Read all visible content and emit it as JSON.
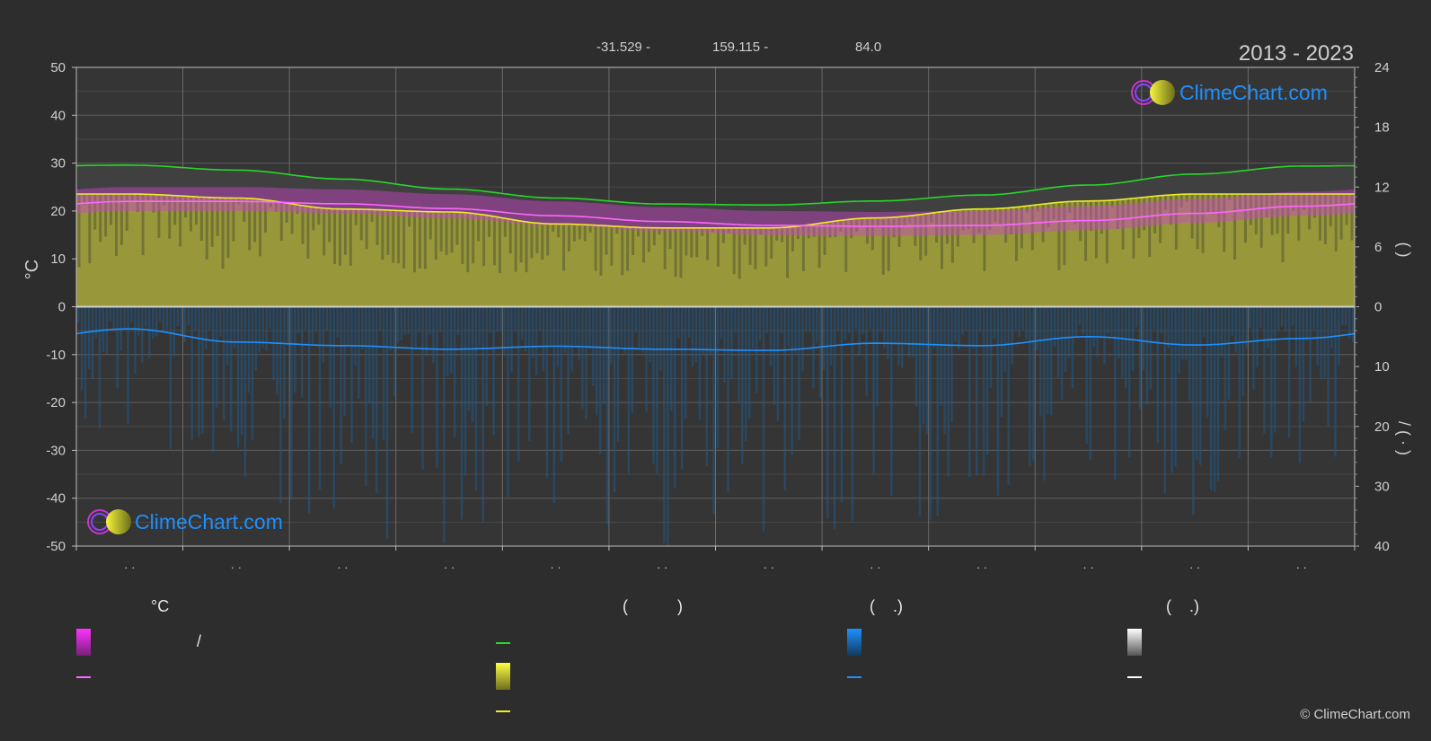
{
  "header": {
    "latitude": "-31.529 -",
    "longitude": "159.115 -",
    "elevation": "84.0",
    "period": "2013 - 2023"
  },
  "brand": {
    "logo_text": "ClimeChart.com",
    "copyright": "© ClimeChart.com"
  },
  "colors": {
    "background": "#2d2d2d",
    "grid": "#5a5a5a",
    "daylight": "#29d629",
    "sunshine_fill": "#a8a83a",
    "sunshine_line": "#ecec2a",
    "temp_band": "#cc44cc",
    "temp_line": "#ff66ff",
    "precip_fill": "#1d5a8a",
    "precip_line": "#1e90ff",
    "snow": "#ffffff"
  },
  "axes": {
    "left_unit": "°C",
    "right_upper_label": "(   )",
    "right_lower_label": "/   (  ·  )"
  },
  "chart_data": {
    "type": "area",
    "x": [
      "· ·",
      "· ·",
      "· ·",
      "· ·",
      "· ·",
      "· ·",
      "· ·",
      "· ·",
      "· ·",
      "· ·",
      "· ·",
      "· ·"
    ],
    "left_ylim": [
      -50,
      50
    ],
    "left_ticks": [
      "50",
      "40",
      "30",
      "20",
      "10",
      "0",
      "-10",
      "-20",
      "-30",
      "-40",
      "-50"
    ],
    "right_upper_ylim": [
      0,
      24
    ],
    "right_upper_ticks": [
      "24",
      "18",
      "12",
      "6",
      "0"
    ],
    "right_lower_ylim": [
      0,
      40
    ],
    "right_lower_ticks": [
      "0",
      "10",
      "20",
      "30",
      "40"
    ],
    "grid": true,
    "series": [
      {
        "values": [
          14.2,
          13.7,
          12.8,
          11.8,
          10.9,
          10.3,
          10.2,
          10.6,
          11.2,
          12.2,
          13.3,
          14.1
        ]
      },
      {
        "values": [
          11.3,
          10.9,
          9.8,
          9.5,
          8.3,
          7.9,
          7.9,
          8.9,
          9.8,
          10.6,
          11.3,
          11.3
        ]
      },
      {
        "values": [
          22.0,
          22.0,
          21.5,
          20.5,
          19.0,
          17.8,
          17.0,
          16.8,
          17.0,
          18.0,
          19.5,
          21.0
        ]
      },
      {
        "values": [
          3.7,
          5.9,
          6.5,
          7.1,
          6.6,
          7.1,
          7.3,
          6.1,
          6.5,
          5.0,
          6.4,
          5.3
        ]
      }
    ]
  },
  "legend": {
    "group1_title": "°C",
    "group2_title": "(           )",
    "group3_title": "(    .)",
    "group4_title": "(    .)",
    "row1_text": "/"
  }
}
